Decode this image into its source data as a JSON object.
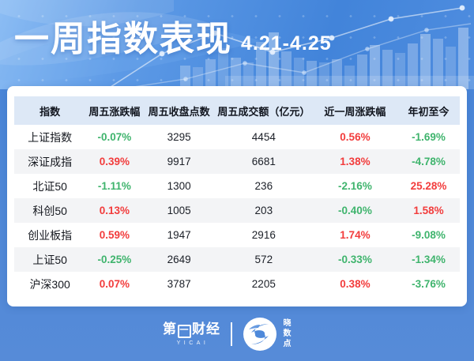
{
  "banner": {
    "title": "一周指数表现",
    "date_range": "4.21-4.25"
  },
  "chart_data": {
    "type": "table",
    "title": "一周指数表现 4.21-4.25",
    "columns": [
      "指数",
      "周五涨跌幅",
      "周五收盘点数",
      "周五成交额（亿元）",
      "近一周涨跌幅",
      "年初至今"
    ],
    "rows": [
      [
        "上证指数",
        "-0.07%",
        "3295",
        "4454",
        "0.56%",
        "-1.69%"
      ],
      [
        "深证成指",
        "0.39%",
        "9917",
        "6681",
        "1.38%",
        "-4.78%"
      ],
      [
        "北证50",
        "-1.11%",
        "1300",
        "236",
        "-2.16%",
        "25.28%"
      ],
      [
        "科创50",
        "0.13%",
        "1005",
        "203",
        "-0.40%",
        "1.58%"
      ],
      [
        "创业板指",
        "0.59%",
        "1947",
        "2916",
        "1.74%",
        "-9.08%"
      ],
      [
        "上证50",
        "-0.25%",
        "2649",
        "572",
        "-0.33%",
        "-1.34%"
      ],
      [
        "沪深300",
        "0.07%",
        "3787",
        "2205",
        "0.38%",
        "-3.76%"
      ]
    ]
  },
  "table_meta": {
    "colored_columns": [
      1,
      4,
      5
    ],
    "column_names": [
      "cell-name",
      "cell-friday-change",
      "cell-friday-close",
      "cell-friday-turnover",
      "cell-week-change",
      "cell-ytd-change"
    ]
  },
  "footer": {
    "publisher_prefix": "第",
    "publisher_one": "一",
    "publisher_suffix": "财经",
    "publisher_sub": "YICAI",
    "brand": "晓数点"
  },
  "colors": {
    "up": "#f23c3c",
    "down": "#3fb46d",
    "banner_blue": "#4a86d9",
    "header_row_bg": "#dde8f6"
  }
}
